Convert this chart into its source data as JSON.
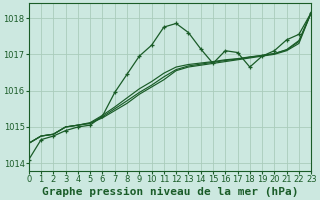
{
  "background_color": "#cce8e0",
  "grid_color": "#aaccbb",
  "line_color": "#1a5c28",
  "title": "Graphe pression niveau de la mer (hPa)",
  "xlim": [
    0,
    23
  ],
  "ylim": [
    1013.8,
    1018.4
  ],
  "yticks": [
    1014,
    1015,
    1016,
    1017,
    1018
  ],
  "xticks": [
    0,
    1,
    2,
    3,
    4,
    5,
    6,
    7,
    8,
    9,
    10,
    11,
    12,
    13,
    14,
    15,
    16,
    17,
    18,
    19,
    20,
    21,
    22,
    23
  ],
  "series_main": [
    1014.1,
    1014.65,
    1014.75,
    1014.9,
    1015.0,
    1015.05,
    1015.3,
    1015.95,
    1016.45,
    1016.95,
    1017.25,
    1017.75,
    1017.85,
    1017.6,
    1017.15,
    1016.75,
    1017.1,
    1017.05,
    1016.65,
    1016.95,
    1017.1,
    1017.4,
    1017.55,
    1018.15
  ],
  "series_line1": [
    1014.55,
    1014.75,
    1014.8,
    1015.0,
    1015.05,
    1015.1,
    1015.25,
    1015.45,
    1015.65,
    1015.9,
    1016.1,
    1016.3,
    1016.55,
    1016.65,
    1016.7,
    1016.75,
    1016.8,
    1016.85,
    1016.9,
    1016.95,
    1017.0,
    1017.1,
    1017.3,
    1018.15
  ],
  "series_line2": [
    1014.55,
    1014.75,
    1014.8,
    1015.0,
    1015.05,
    1015.1,
    1015.28,
    1015.5,
    1015.72,
    1015.95,
    1016.15,
    1016.38,
    1016.58,
    1016.68,
    1016.73,
    1016.78,
    1016.83,
    1016.87,
    1016.92,
    1016.97,
    1017.02,
    1017.12,
    1017.35,
    1018.15
  ],
  "series_line3": [
    1014.55,
    1014.75,
    1014.8,
    1015.0,
    1015.05,
    1015.12,
    1015.32,
    1015.55,
    1015.8,
    1016.05,
    1016.25,
    1016.48,
    1016.65,
    1016.72,
    1016.76,
    1016.8,
    1016.85,
    1016.88,
    1016.93,
    1016.97,
    1017.02,
    1017.13,
    1017.38,
    1018.15
  ],
  "title_fontsize": 8,
  "tick_fontsize": 6
}
